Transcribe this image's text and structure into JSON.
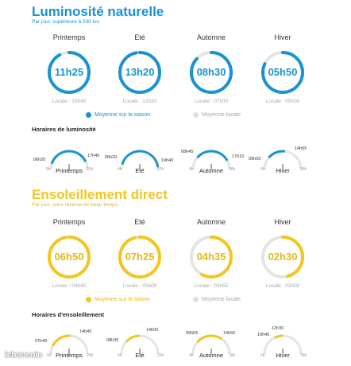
{
  "colors": {
    "blue": "#1a93d0",
    "yellow": "#f2c71d",
    "track": "#e4e4e4",
    "grey_text": "#a8a8a8"
  },
  "luminosite": {
    "title": "Luminosité naturelle",
    "subtitle": "Par jour, supérieure à 200 lux",
    "seasons": [
      {
        "name": "Printemps",
        "value": "11h25",
        "locale": "Locale : 10h45",
        "progress": 0.92
      },
      {
        "name": "Eté",
        "value": "13h20",
        "locale": "Locale : 12h33",
        "progress": 0.97
      },
      {
        "name": "Automne",
        "value": "08h30",
        "locale": "Locale : 07h30",
        "progress": 0.87
      },
      {
        "name": "Hiver",
        "value": "05h50",
        "locale": "Locale : 05h00",
        "progress": 0.82
      }
    ],
    "legend": {
      "season": "Moyenne sur la saison",
      "local": "Moyenne locale"
    },
    "horaires_title": "Horaires de luminosité",
    "horaires": [
      {
        "name": "Printemps",
        "start": "06h20",
        "end": "17h40",
        "tick_left": "5h",
        "tick_right": "20h"
      },
      {
        "name": "Eté",
        "start": "06h20",
        "end": "19h40",
        "tick_left": "4h",
        "tick_right": "22h"
      },
      {
        "name": "Automne",
        "start": "08h45",
        "end": "17h15",
        "tick_left": "4h",
        "tick_right": "18h"
      },
      {
        "name": "Hiver",
        "start": "09h05",
        "end": "14h55",
        "tick_left": "5h",
        "tick_right": "18h"
      }
    ]
  },
  "ensoleillement": {
    "title": "Ensoleillement direct",
    "subtitle": "Par jour, sous réserve de beau temps",
    "seasons": [
      {
        "name": "Printemps",
        "value": "06h50",
        "locale": "Locale : 04h45",
        "progress": 0.97
      },
      {
        "name": "Eté",
        "value": "07h25",
        "locale": "Locale : 05h00",
        "progress": 0.96
      },
      {
        "name": "Automne",
        "value": "04h35",
        "locale": "Locale : 03h55",
        "progress": 0.58
      },
      {
        "name": "Hiver",
        "value": "02h30",
        "locale": "Locale : 03h00",
        "progress": 0.46
      }
    ],
    "legend": {
      "season": "Moyenne sur la saison",
      "local": "Moyenne locale"
    },
    "horaires_title": "Horaires d'ensoleillement",
    "horaires": [
      {
        "name": "Printemps",
        "start": "07h40",
        "end": "14h45",
        "tick_left": "5h",
        "tick_right": "20h"
      },
      {
        "name": "Eté",
        "start": "08h35",
        "end": "14h00",
        "tick_left": "4h",
        "tick_right": "22h"
      },
      {
        "name": "Automne",
        "start": "09h55",
        "end": "14h55",
        "tick_left": "4h",
        "tick_right": "18h"
      },
      {
        "name": "Hiver",
        "start": "10h45",
        "end": "12h30",
        "tick_left": "5h",
        "tick_right": "18h"
      }
    ]
  },
  "watermark": "leboncoin"
}
